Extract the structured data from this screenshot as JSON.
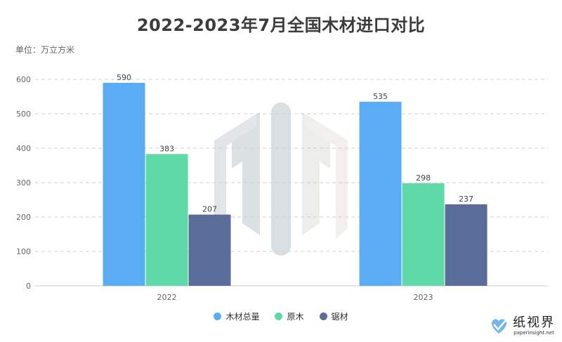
{
  "title": "2022-2023年7月全国木材进口对比",
  "unit_label": "单位：万立方米",
  "colors": {
    "total": "#5aacf5",
    "log": "#5fd9a8",
    "sawn": "#5a6d98"
  },
  "chart_data": {
    "type": "bar",
    "title": "2022-2023年7月全国木材进口对比",
    "ylabel": "单位：万立方米",
    "categories": [
      "2022",
      "2023"
    ],
    "ylim": [
      0,
      600
    ],
    "yticks": [
      0,
      100,
      200,
      300,
      400,
      500,
      600
    ],
    "grid": true,
    "legend_position": "bottom",
    "series": [
      {
        "name": "木材总量",
        "color": "#5aacf5",
        "values": [
          590,
          535
        ]
      },
      {
        "name": "原木",
        "color": "#5fd9a8",
        "values": [
          383,
          298
        ]
      },
      {
        "name": "锯材",
        "color": "#5a6d98",
        "values": [
          207,
          237
        ]
      }
    ]
  },
  "watermark": {
    "icon": "paper-logo-watermark"
  },
  "brand": {
    "name": "纸视界",
    "url": "paperinsight.net",
    "icon": "paper-heart-logo-icon"
  }
}
